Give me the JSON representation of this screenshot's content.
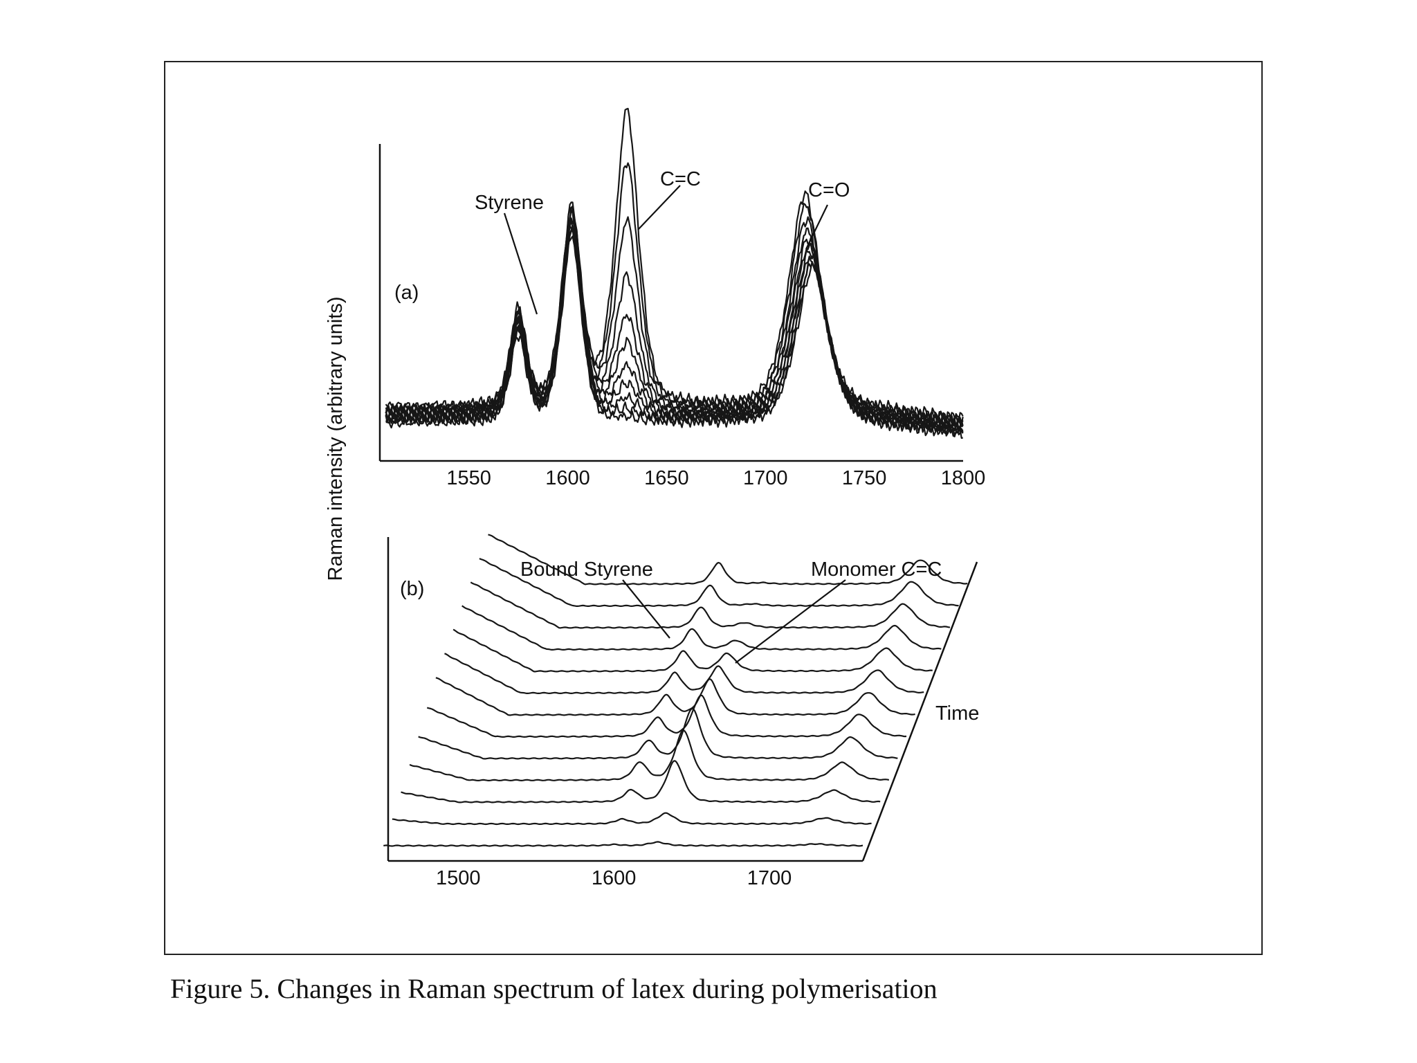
{
  "figure": {
    "caption": "Figure 5. Changes in Raman spectrum of latex during polymerisation"
  },
  "chart_data": [
    {
      "type": "line",
      "panel_label": "(a)",
      "xlabel": "",
      "ylabel": "Raman intensity (arbitrary units)",
      "xlim": [
        1505,
        1800
      ],
      "ylim": [
        0,
        1.0
      ],
      "x_ticks": [
        1550,
        1600,
        1650,
        1700,
        1750,
        1800
      ],
      "grid": false,
      "annotations": [
        {
          "text": "Styrene",
          "x": 1583,
          "y": 0.43
        },
        {
          "text": "C=C",
          "x": 1630,
          "y": 0.78
        },
        {
          "text": "C=O",
          "x": 1718,
          "y": 0.68
        }
      ],
      "peaks": {
        "styrene_small": {
          "center": 1575,
          "width": 4.5
        },
        "styrene": {
          "center": 1602,
          "width": 5.5
        },
        "c_eq_c": {
          "center": 1630,
          "width": 6.5
        },
        "c_eq_o": {
          "center": 1720,
          "width": 9
        }
      },
      "series": [
        {
          "c_eq_c": 0.93,
          "c_eq_o": 0.67,
          "styrene": 0.62,
          "styrene_small": 0.3,
          "baseline": 0.17
        },
        {
          "c_eq_c": 0.77,
          "c_eq_o": 0.64,
          "styrene": 0.62,
          "styrene_small": 0.3,
          "baseline": 0.165
        },
        {
          "c_eq_c": 0.59,
          "c_eq_o": 0.6,
          "styrene": 0.62,
          "styrene_small": 0.3,
          "baseline": 0.16
        },
        {
          "c_eq_c": 0.42,
          "c_eq_o": 0.57,
          "styrene": 0.61,
          "styrene_small": 0.3,
          "baseline": 0.155
        },
        {
          "c_eq_c": 0.3,
          "c_eq_o": 0.55,
          "styrene": 0.61,
          "styrene_small": 0.29,
          "baseline": 0.15
        },
        {
          "c_eq_c": 0.22,
          "c_eq_o": 0.53,
          "styrene": 0.61,
          "styrene_small": 0.29,
          "baseline": 0.145
        },
        {
          "c_eq_c": 0.15,
          "c_eq_o": 0.52,
          "styrene": 0.6,
          "styrene_small": 0.29,
          "baseline": 0.14
        },
        {
          "c_eq_c": 0.1,
          "c_eq_o": 0.51,
          "styrene": 0.6,
          "styrene_small": 0.28,
          "baseline": 0.135
        },
        {
          "c_eq_c": 0.06,
          "c_eq_o": 0.5,
          "styrene": 0.6,
          "styrene_small": 0.28,
          "baseline": 0.13
        },
        {
          "c_eq_c": 0.03,
          "c_eq_o": 0.5,
          "styrene": 0.59,
          "styrene_small": 0.28,
          "baseline": 0.125
        },
        {
          "c_eq_c": 0.01,
          "c_eq_o": 0.49,
          "styrene": 0.59,
          "styrene_small": 0.27,
          "baseline": 0.12
        }
      ]
    },
    {
      "type": "line",
      "panel_label": "(b)",
      "xlabel": "",
      "ylabel": "Raman intensity (arbitrary units)",
      "depth_axis_label": "Time",
      "xlim": [
        1455,
        1760
      ],
      "x_ticks": [
        1500,
        1600,
        1700
      ],
      "grid": false,
      "annotations": [
        {
          "text": "Bound Styrene"
        },
        {
          "text": "Monomer C=C"
        }
      ],
      "peaks": {
        "bound_styrene": {
          "center": 1600,
          "width": 5
        },
        "monomer_c_eq_c": {
          "center": 1628,
          "width": 6
        },
        "c_eq_o": {
          "center": 1730,
          "width": 8
        }
      },
      "series": [
        {
          "bound_styrene": 0.02,
          "monomer_c_eq_c": 0.06,
          "c_eq_o": 0.03
        },
        {
          "bound_styrene": 0.08,
          "monomer_c_eq_c": 0.18,
          "c_eq_o": 0.1
        },
        {
          "bound_styrene": 0.2,
          "monomer_c_eq_c": 0.7,
          "c_eq_o": 0.2
        },
        {
          "bound_styrene": 0.3,
          "monomer_c_eq_c": 0.85,
          "c_eq_o": 0.3
        },
        {
          "bound_styrene": 0.3,
          "monomer_c_eq_c": 0.85,
          "c_eq_o": 0.36
        },
        {
          "bound_styrene": 0.32,
          "monomer_c_eq_c": 0.7,
          "c_eq_o": 0.38
        },
        {
          "bound_styrene": 0.33,
          "monomer_c_eq_c": 0.6,
          "c_eq_o": 0.38
        },
        {
          "bound_styrene": 0.34,
          "monomer_c_eq_c": 0.45,
          "c_eq_o": 0.39
        },
        {
          "bound_styrene": 0.34,
          "monomer_c_eq_c": 0.3,
          "c_eq_o": 0.39
        },
        {
          "bound_styrene": 0.35,
          "monomer_c_eq_c": 0.15,
          "c_eq_o": 0.4
        },
        {
          "bound_styrene": 0.35,
          "monomer_c_eq_c": 0.08,
          "c_eq_o": 0.4
        },
        {
          "bound_styrene": 0.35,
          "monomer_c_eq_c": 0.03,
          "c_eq_o": 0.41
        },
        {
          "bound_styrene": 0.36,
          "monomer_c_eq_c": 0.02,
          "c_eq_o": 0.41
        }
      ]
    }
  ]
}
